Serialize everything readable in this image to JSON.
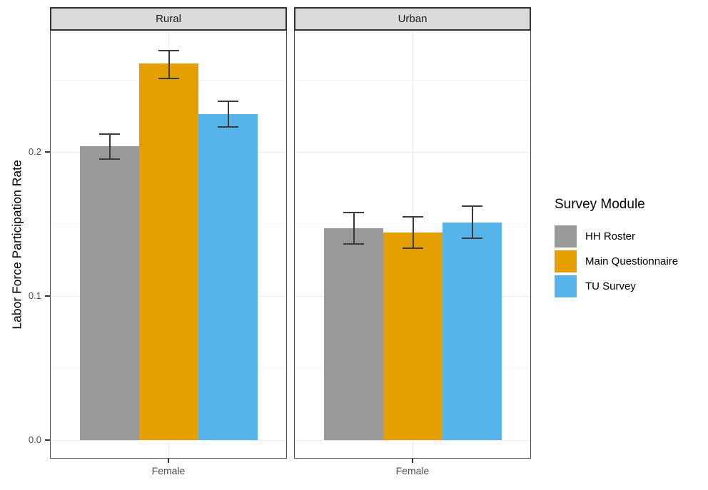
{
  "chart_data": {
    "type": "bar",
    "title": "",
    "ylabel": "Labor Force Participation Rate",
    "xlabel": "",
    "x_category": "Female",
    "legend_title": "Survey Module",
    "legend_position": "right",
    "facets": [
      "Rural",
      "Urban"
    ],
    "ylim": [
      -0.013,
      0.284
    ],
    "yticks": [
      0,
      0.1,
      0.2
    ],
    "ytick_labels": [
      "0.0",
      "0.1",
      "0.2"
    ],
    "minor_ticks": [
      0.05,
      0.15,
      0.25
    ],
    "grid": "white panel, light gray horizontal major+minor gridlines, vertical gridline at category center",
    "error_bars": true,
    "series": [
      {
        "name": "HH Roster",
        "color": "#999999",
        "data": [
          {
            "facet": "Rural",
            "x": "Female",
            "y": 0.204,
            "ci_low": 0.195,
            "ci_high": 0.212
          },
          {
            "facet": "Urban",
            "x": "Female",
            "y": 0.147,
            "ci_low": 0.136,
            "ci_high": 0.158
          }
        ]
      },
      {
        "name": "Main Questionnaire",
        "color": "#E69F00",
        "data": [
          {
            "facet": "Rural",
            "x": "Female",
            "y": 0.261,
            "ci_low": 0.251,
            "ci_high": 0.27
          },
          {
            "facet": "Urban",
            "x": "Female",
            "y": 0.144,
            "ci_low": 0.133,
            "ci_high": 0.155
          }
        ]
      },
      {
        "name": "TU Survey",
        "color": "#56B4E9",
        "data": [
          {
            "facet": "Rural",
            "x": "Female",
            "y": 0.226,
            "ci_low": 0.217,
            "ci_high": 0.235
          },
          {
            "facet": "Urban",
            "x": "Female",
            "y": 0.151,
            "ci_low": 0.14,
            "ci_high": 0.162
          }
        ]
      }
    ],
    "colors": {
      "strip_bg": "#DBDBDB",
      "strip_border": "#333333",
      "panel_border": "#4D4D4D",
      "grid_major": "#EBEBEB",
      "grid_minor": "#F5F5F5",
      "axis_text": "#4D4D4D",
      "error_bar": "#3B3B3B"
    }
  }
}
